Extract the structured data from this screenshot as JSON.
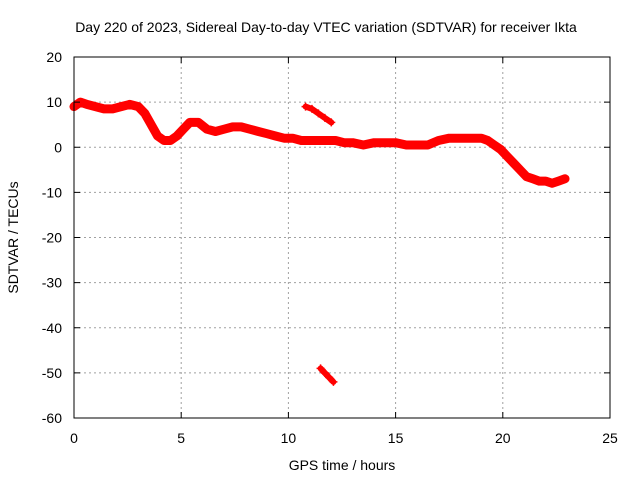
{
  "chart_data": {
    "type": "scatter",
    "title": "Day 220 of 2023, Sidereal Day-to-day VTEC variation (SDTVAR) for receiver Ikta",
    "xlabel": "GPS time / hours",
    "ylabel": "SDTVAR / TECUs",
    "xlim": [
      0,
      25
    ],
    "ylim": [
      -60,
      20
    ],
    "xticks": [
      0,
      5,
      10,
      15,
      20,
      25
    ],
    "yticks": [
      -60,
      -50,
      -40,
      -30,
      -20,
      -10,
      0,
      10,
      20
    ],
    "grid": true,
    "series_color": "#ff0000",
    "series": [
      {
        "name": "main trace",
        "x": [
          0.0,
          0.3,
          0.6,
          1.0,
          1.4,
          1.8,
          2.2,
          2.6,
          3.0,
          3.3,
          3.6,
          3.9,
          4.2,
          4.5,
          4.8,
          5.1,
          5.4,
          5.8,
          6.2,
          6.6,
          7.0,
          7.4,
          7.8,
          8.2,
          8.6,
          9.0,
          9.4,
          9.8,
          10.2,
          10.6,
          11.0,
          11.4,
          11.8,
          12.2,
          12.6,
          13.0,
          13.5,
          14.0,
          14.5,
          15.0,
          15.5,
          16.0,
          16.5,
          17.0,
          17.5,
          18.0,
          18.5,
          19.0,
          19.3,
          19.6,
          19.9,
          20.2,
          20.5,
          20.8,
          21.1,
          21.4,
          21.7,
          22.0,
          22.3,
          22.6,
          22.9
        ],
        "y": [
          9,
          10,
          9.5,
          9,
          8.5,
          8.5,
          9,
          9.5,
          9,
          7.5,
          5,
          2.5,
          1.5,
          1.5,
          2.5,
          4,
          5.5,
          5.5,
          4,
          3.5,
          4,
          4.5,
          4.5,
          4,
          3.5,
          3,
          2.5,
          2,
          2,
          1.5,
          1.5,
          1.5,
          1.5,
          1.5,
          1,
          1,
          0.5,
          1,
          1,
          1,
          0.5,
          0.5,
          0.5,
          1.5,
          2,
          2,
          2,
          2,
          1.5,
          0.5,
          -0.5,
          -2,
          -3.5,
          -5,
          -6.5,
          -7,
          -7.5,
          -7.5,
          -8,
          -7.5,
          -7
        ]
      },
      {
        "name": "arc near 11-12 h",
        "x": [
          10.8,
          11.1,
          11.4,
          11.7,
          12.0
        ],
        "y": [
          9,
          8.5,
          7.5,
          6.5,
          5.5
        ]
      },
      {
        "name": "low arc near 11.5-12 h",
        "x": [
          11.5,
          11.7,
          11.9,
          12.1
        ],
        "y": [
          -49,
          -50,
          -51,
          -52
        ]
      }
    ]
  }
}
